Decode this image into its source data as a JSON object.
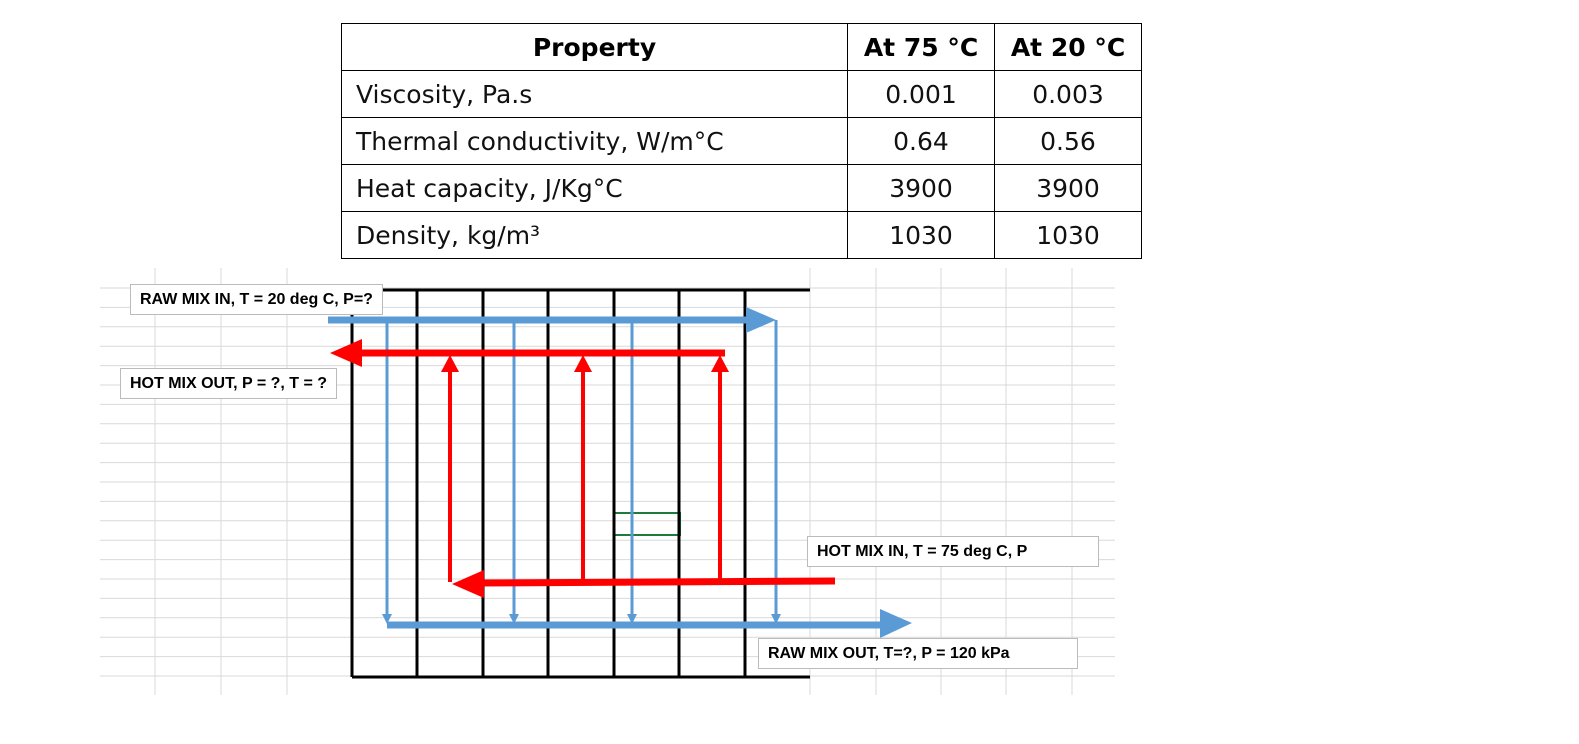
{
  "table": {
    "header": [
      "Property",
      "At 75 °C",
      "At 20 °C"
    ],
    "rows": [
      [
        "Viscosity, Pa.s",
        "0.001",
        "0.003"
      ],
      [
        "Thermal conductivity, W/m°C",
        "0.64",
        "0.56"
      ],
      [
        "Heat capacity, J/Kg°C",
        "3900",
        "3900"
      ],
      [
        "Density, kg/m³",
        "1030",
        "1030"
      ]
    ]
  },
  "labels": {
    "raw_in": "RAW MIX IN, T = 20 deg C, P=?",
    "hot_out": "HOT MIX OUT, P = ?, T = ?",
    "hot_in": "HOT MIX IN, T = 75 deg C, P",
    "raw_out": "RAW MIX OUT, T=?, P = 120 kPa"
  }
}
